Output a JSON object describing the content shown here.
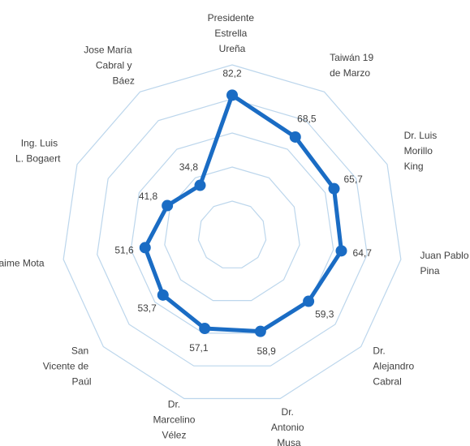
{
  "chart_data": {
    "type": "radar",
    "categories": [
      "Presidente Estrella Ureña",
      "Taiwán 19 de Marzo",
      "Dr. Luis Morillo King",
      "Juan Pablo Pina",
      "Dr. Alejandro Cabral",
      "Dr. Antonio Musa",
      "Dr. Marcelino Vélez Santana",
      "San Vicente de Paúl",
      "Jaime Mota",
      "Ing. Luis L. Bogaert",
      "Jose María Cabral y Báez"
    ],
    "values": [
      82.2,
      68.5,
      65.7,
      64.7,
      59.3,
      58.9,
      57.1,
      53.7,
      51.6,
      41.8,
      34.8
    ],
    "value_labels": [
      "82,2",
      "68,5",
      "65,7",
      "64,7",
      "59,3",
      "58,9",
      "57,1",
      "53,7",
      "51,6",
      "41,8",
      "34,8"
    ],
    "color": "#1a6cc4",
    "grid_color": "#bcd6ec",
    "ylim": [
      0,
      100
    ],
    "yticks": [
      0,
      20,
      40,
      60,
      80,
      100
    ],
    "grid": true
  }
}
